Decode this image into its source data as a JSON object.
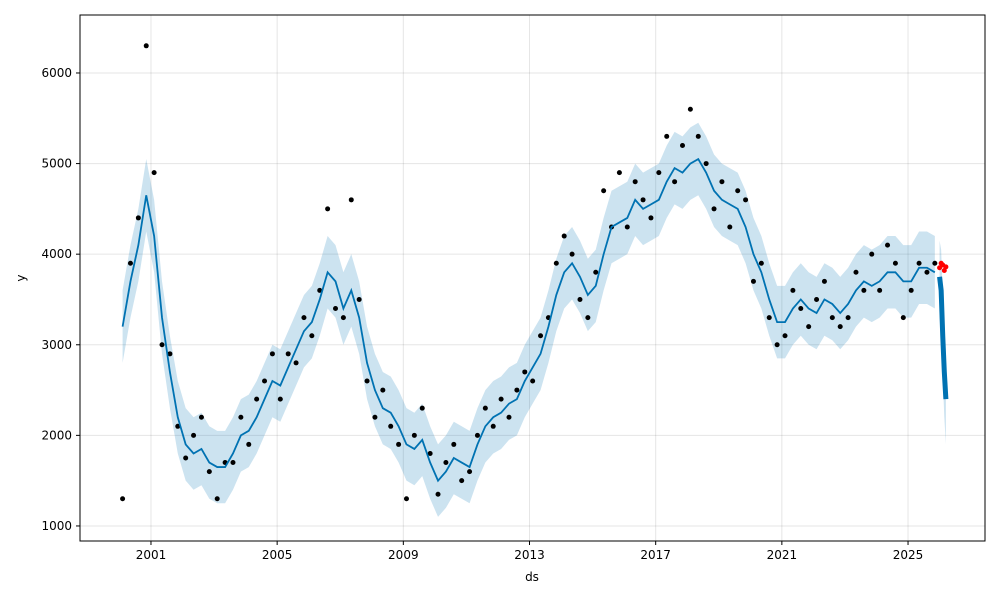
{
  "chart_data": {
    "type": "forecast",
    "x_label": "ds",
    "y_label": "y",
    "xlim": [
      1998.75,
      2027.44
    ],
    "ylim": [
      834,
      6640
    ],
    "xticks": [
      2001,
      2005,
      2009,
      2013,
      2017,
      2021,
      2025
    ],
    "yticks": [
      1000,
      2000,
      3000,
      4000,
      5000,
      6000
    ],
    "grid": true,
    "observed_color": "#000000",
    "yhat_color": "#0072B2",
    "band_color": "#0072B2",
    "actual_recent_color": "#ff0000",
    "x": [
      2000.1,
      2000.35,
      2000.6,
      2000.85,
      2001.1,
      2001.35,
      2001.6,
      2001.85,
      2002.1,
      2002.35,
      2002.6,
      2002.85,
      2003.1,
      2003.35,
      2003.6,
      2003.85,
      2004.1,
      2004.35,
      2004.6,
      2004.85,
      2005.1,
      2005.35,
      2005.6,
      2005.85,
      2006.1,
      2006.35,
      2006.6,
      2006.85,
      2007.1,
      2007.35,
      2007.6,
      2007.85,
      2008.1,
      2008.35,
      2008.6,
      2008.85,
      2009.1,
      2009.35,
      2009.6,
      2009.85,
      2010.1,
      2010.35,
      2010.6,
      2010.85,
      2011.1,
      2011.35,
      2011.6,
      2011.85,
      2012.1,
      2012.35,
      2012.6,
      2012.85,
      2013.1,
      2013.35,
      2013.6,
      2013.85,
      2014.1,
      2014.35,
      2014.6,
      2014.85,
      2015.1,
      2015.35,
      2015.6,
      2015.85,
      2016.1,
      2016.35,
      2016.6,
      2016.85,
      2017.1,
      2017.35,
      2017.6,
      2017.85,
      2018.1,
      2018.35,
      2018.6,
      2018.85,
      2019.1,
      2019.35,
      2019.6,
      2019.85,
      2020.1,
      2020.35,
      2020.6,
      2020.85,
      2021.1,
      2021.35,
      2021.6,
      2021.85,
      2022.1,
      2022.35,
      2022.6,
      2022.85,
      2023.1,
      2023.35,
      2023.6,
      2023.85,
      2024.1,
      2024.35,
      2024.6,
      2024.85,
      2025.1,
      2025.35,
      2025.6,
      2025.85
    ],
    "observed": [
      1300,
      3900,
      4400,
      6300,
      4900,
      3000,
      2900,
      2100,
      1750,
      2000,
      2200,
      1600,
      1300,
      1700,
      1700,
      2200,
      1900,
      2400,
      2600,
      2900,
      2400,
      2900,
      2800,
      3300,
      3100,
      3600,
      4500,
      3400,
      3300,
      4600,
      3500,
      2600,
      2200,
      2500,
      2100,
      1900,
      1300,
      2000,
      2300,
      1800,
      1350,
      1700,
      1900,
      1500,
      1600,
      2000,
      2300,
      2100,
      2400,
      2200,
      2500,
      2700,
      2600,
      3100,
      3300,
      3900,
      4200,
      4000,
      3500,
      3300,
      3800,
      4700,
      4300,
      4900,
      4300,
      4800,
      4600,
      4400,
      4900,
      5300,
      4800,
      5200,
      5600,
      5300,
      5000,
      4500,
      4800,
      4300,
      4700,
      4600,
      3700,
      3900,
      3300,
      3000,
      3100,
      3600,
      3400,
      3200,
      3500,
      3700,
      3300,
      3200,
      3300,
      3800,
      3600,
      4000,
      3600,
      4100,
      3900,
      3300,
      3600,
      3900,
      3800,
      3900
    ],
    "yhat": [
      3200,
      3700,
      4100,
      4650,
      4200,
      3300,
      2700,
      2200,
      1900,
      1800,
      1850,
      1700,
      1650,
      1650,
      1800,
      2000,
      2050,
      2200,
      2400,
      2600,
      2550,
      2750,
      2950,
      3150,
      3250,
      3500,
      3800,
      3700,
      3400,
      3600,
      3300,
      2800,
      2500,
      2300,
      2250,
      2100,
      1900,
      1850,
      1950,
      1700,
      1500,
      1600,
      1750,
      1700,
      1650,
      1900,
      2100,
      2200,
      2250,
      2350,
      2400,
      2600,
      2750,
      2900,
      3200,
      3550,
      3800,
      3900,
      3750,
      3550,
      3650,
      4000,
      4300,
      4350,
      4400,
      4600,
      4500,
      4550,
      4600,
      4800,
      4950,
      4900,
      5000,
      5050,
      4900,
      4700,
      4600,
      4550,
      4500,
      4300,
      4000,
      3800,
      3500,
      3250,
      3250,
      3400,
      3500,
      3400,
      3350,
      3500,
      3450,
      3350,
      3450,
      3600,
      3700,
      3650,
      3700,
      3800,
      3800,
      3700,
      3700,
      3850,
      3850,
      3800
    ],
    "yhat_lower": [
      2800,
      3300,
      3700,
      4250,
      3800,
      2900,
      2300,
      1800,
      1500,
      1400,
      1450,
      1300,
      1250,
      1250,
      1400,
      1600,
      1650,
      1800,
      2000,
      2200,
      2150,
      2350,
      2550,
      2750,
      2850,
      3100,
      3400,
      3300,
      3000,
      3200,
      2900,
      2400,
      2100,
      1900,
      1850,
      1700,
      1500,
      1450,
      1550,
      1300,
      1100,
      1200,
      1350,
      1300,
      1250,
      1500,
      1700,
      1800,
      1850,
      1950,
      2000,
      2200,
      2350,
      2500,
      2800,
      3150,
      3400,
      3500,
      3350,
      3150,
      3250,
      3600,
      3900,
      3950,
      4000,
      4200,
      4100,
      4150,
      4200,
      4400,
      4550,
      4500,
      4600,
      4650,
      4500,
      4300,
      4200,
      4150,
      4100,
      3900,
      3600,
      3400,
      3100,
      2850,
      2850,
      3000,
      3100,
      3000,
      2950,
      3100,
      3050,
      2950,
      3050,
      3200,
      3300,
      3250,
      3300,
      3400,
      3400,
      3300,
      3300,
      3450,
      3450,
      3400
    ],
    "yhat_upper": [
      3600,
      4100,
      4500,
      5050,
      4600,
      3700,
      3100,
      2600,
      2300,
      2200,
      2250,
      2100,
      2050,
      2050,
      2200,
      2400,
      2450,
      2600,
      2800,
      3000,
      2950,
      3150,
      3350,
      3550,
      3650,
      3900,
      4200,
      4100,
      3800,
      4000,
      3700,
      3200,
      2900,
      2700,
      2650,
      2500,
      2300,
      2250,
      2350,
      2100,
      1900,
      2000,
      2150,
      2100,
      2050,
      2300,
      2500,
      2600,
      2650,
      2750,
      2800,
      3000,
      3150,
      3300,
      3600,
      3950,
      4200,
      4300,
      4150,
      3950,
      4050,
      4400,
      4700,
      4750,
      4800,
      5000,
      4900,
      4950,
      5000,
      5200,
      5350,
      5300,
      5400,
      5450,
      5300,
      5100,
      5000,
      4950,
      4900,
      4700,
      4400,
      4200,
      3900,
      3650,
      3650,
      3800,
      3900,
      3800,
      3750,
      3900,
      3850,
      3750,
      3850,
      4000,
      4100,
      4050,
      4100,
      4200,
      4200,
      4100,
      4100,
      4250,
      4250,
      4200
    ],
    "forecast": {
      "x": [
        2026.0,
        2026.05,
        2026.1,
        2026.15,
        2026.2
      ],
      "actual_recent": [
        3850,
        3900,
        3880,
        3820,
        3860
      ],
      "yhat": [
        3750,
        3600,
        3100,
        2700,
        2400
      ],
      "yhat_lower": [
        3300,
        3150,
        2650,
        2200,
        1900
      ],
      "yhat_upper": [
        4150,
        4050,
        3550,
        3200,
        2900
      ]
    }
  }
}
